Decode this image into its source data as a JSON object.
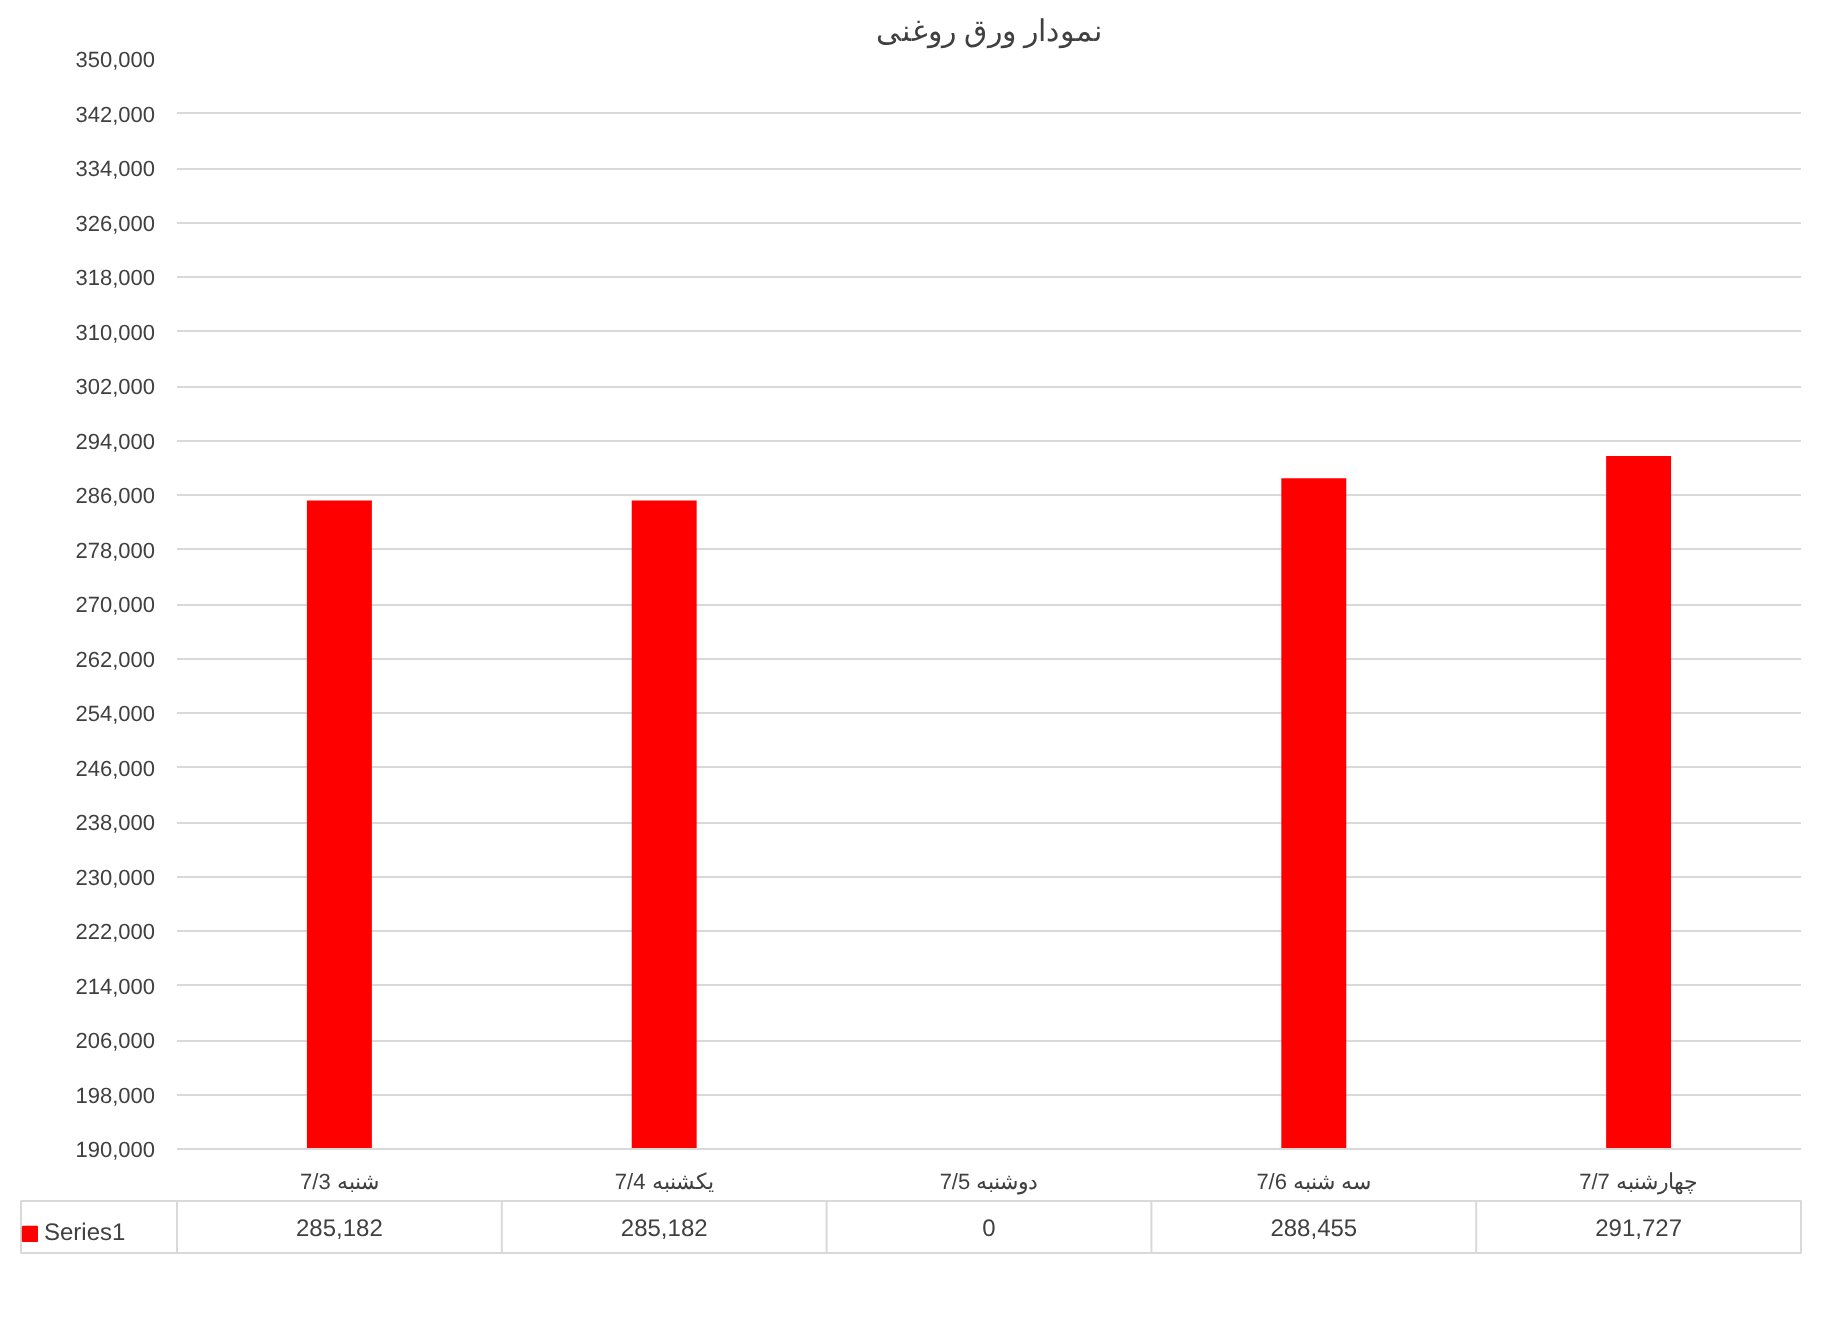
{
  "chart_data": {
    "type": "bar",
    "title": "نمودار ورق روغنی",
    "categories": [
      "شنبه 7/3",
      "یکشنبه 7/4",
      "دوشنبه 7/5",
      "سه شنبه 7/6",
      "چهارشنبه 7/7"
    ],
    "series": [
      {
        "name": "Series1",
        "color": "#ff0000",
        "values": [
          285182,
          285182,
          null,
          288455,
          291727
        ],
        "value_labels": [
          "285,182",
          "285,182",
          "0",
          "288,455",
          "291,727"
        ]
      }
    ],
    "ylim": [
      190000,
      350000
    ],
    "yticks": [
      {
        "value": 190000,
        "label": "190,000"
      },
      {
        "value": 198000,
        "label": "198,000"
      },
      {
        "value": 206000,
        "label": "206,000"
      },
      {
        "value": 214000,
        "label": "214,000"
      },
      {
        "value": 222000,
        "label": "222,000"
      },
      {
        "value": 230000,
        "label": "230,000"
      },
      {
        "value": 238000,
        "label": "238,000"
      },
      {
        "value": 246000,
        "label": "246,000"
      },
      {
        "value": 254000,
        "label": "254,000"
      },
      {
        "value": 262000,
        "label": "262,000"
      },
      {
        "value": 270000,
        "label": "270,000"
      },
      {
        "value": 278000,
        "label": "278,000"
      },
      {
        "value": 286000,
        "label": "286,000"
      },
      {
        "value": 294000,
        "label": "294,000"
      },
      {
        "value": 302000,
        "label": "302,000"
      },
      {
        "value": 310000,
        "label": "310,000"
      },
      {
        "value": 318000,
        "label": "318,000"
      },
      {
        "value": 326000,
        "label": "326,000"
      },
      {
        "value": 334000,
        "label": "334,000"
      },
      {
        "value": 342000,
        "label": "342,000"
      },
      {
        "value": 350000,
        "label": "350,000"
      }
    ],
    "grid": "y",
    "legend": "bottom"
  }
}
